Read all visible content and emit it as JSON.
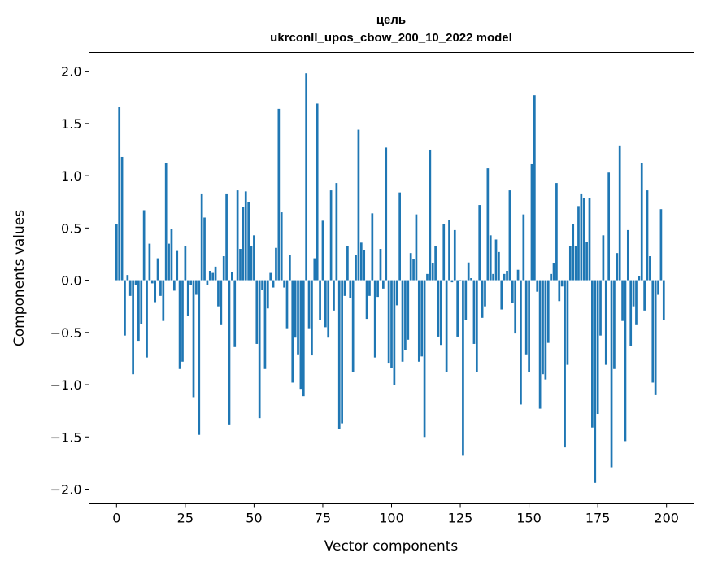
{
  "chart_data": {
    "type": "bar",
    "title": "цель",
    "subtitle": "ukrconll_upos_cbow_200_10_2022 model",
    "xlabel": "Vector components",
    "ylabel": "Components values",
    "xlim": [
      -10,
      210
    ],
    "ylim": [
      -2.14,
      2.18
    ],
    "xticks": [
      0,
      25,
      50,
      75,
      100,
      125,
      150,
      175,
      200
    ],
    "xtick_labels": [
      "0",
      "25",
      "50",
      "75",
      "100",
      "125",
      "150",
      "175",
      "200"
    ],
    "yticks": [
      -2.0,
      -1.5,
      -1.0,
      -0.5,
      0.0,
      0.5,
      1.0,
      1.5,
      2.0
    ],
    "ytick_labels": [
      "−2.0",
      "−1.5",
      "−1.0",
      "−0.5",
      "0.0",
      "0.5",
      "1.0",
      "1.5",
      "2.0"
    ],
    "grid": false,
    "color": "#1f77b4",
    "values": [
      0.54,
      1.66,
      1.18,
      -0.53,
      0.05,
      -0.15,
      -0.9,
      -0.05,
      -0.58,
      -0.42,
      0.67,
      -0.74,
      0.35,
      -0.03,
      -0.21,
      0.21,
      -0.15,
      -0.39,
      1.12,
      0.35,
      0.49,
      -0.1,
      0.28,
      -0.85,
      -0.78,
      0.33,
      -0.34,
      -0.05,
      -1.12,
      -0.14,
      -1.48,
      0.83,
      0.6,
      -0.05,
      0.09,
      0.07,
      0.13,
      -0.25,
      -0.43,
      0.23,
      0.83,
      -1.38,
      0.08,
      -0.64,
      0.86,
      0.3,
      0.7,
      0.85,
      0.75,
      0.33,
      0.43,
      -0.61,
      -1.32,
      -0.09,
      -0.85,
      -0.27,
      0.07,
      -0.07,
      0.31,
      1.64,
      0.65,
      -0.07,
      -0.46,
      0.24,
      -0.98,
      -0.55,
      -0.71,
      -1.04,
      -1.11,
      1.98,
      -0.46,
      -0.72,
      0.21,
      1.69,
      -0.38,
      0.57,
      -0.45,
      -0.55,
      0.86,
      -0.29,
      0.93,
      -1.42,
      -1.37,
      -0.15,
      0.33,
      -0.17,
      -0.88,
      0.24,
      1.44,
      0.36,
      0.29,
      -0.37,
      -0.15,
      0.64,
      -0.74,
      -0.16,
      0.3,
      -0.08,
      1.27,
      -0.79,
      -0.84,
      -1.0,
      -0.24,
      0.84,
      -0.78,
      -0.67,
      -0.57,
      0.26,
      0.2,
      0.63,
      -0.78,
      -0.73,
      -1.5,
      0.06,
      1.25,
      0.16,
      0.33,
      -0.54,
      -0.62,
      0.54,
      -0.88,
      0.58,
      -0.02,
      0.48,
      -0.54,
      -0.005,
      -1.68,
      -0.38,
      0.17,
      0.02,
      -0.61,
      -0.88,
      0.72,
      -0.36,
      -0.25,
      1.07,
      0.43,
      0.06,
      0.39,
      0.27,
      -0.28,
      0.06,
      0.09,
      0.86,
      -0.22,
      -0.51,
      0.1,
      -1.19,
      0.63,
      -0.71,
      -0.88,
      1.11,
      1.77,
      -0.11,
      -1.23,
      -0.9,
      -0.95,
      -0.6,
      0.06,
      0.16,
      0.93,
      -0.2,
      -0.06,
      -1.6,
      -0.81,
      0.33,
      0.54,
      0.33,
      0.71,
      0.83,
      0.79,
      0.37,
      0.79,
      -1.41,
      -1.94,
      -1.28,
      -0.53,
      0.43,
      -0.81,
      1.03,
      -1.79,
      -0.85,
      0.26,
      1.29,
      -0.39,
      -1.54,
      0.48,
      -0.63,
      -0.25,
      -0.43,
      0.04,
      1.12,
      -0.29,
      0.86,
      0.23,
      -0.98,
      -1.1,
      -0.14,
      0.68,
      -0.38
    ]
  }
}
